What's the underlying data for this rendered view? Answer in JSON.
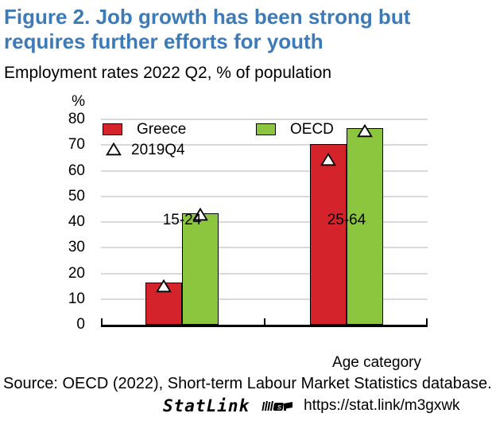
{
  "figure": {
    "title_line1": "Figure 2. Job growth has been strong but",
    "title_line2": "requires further efforts for youth",
    "subtitle": "Employment rates 2022 Q2, % of population"
  },
  "chart_data": {
    "type": "bar",
    "title": "Employment rates 2022 Q2, % of population",
    "unit_label": "%",
    "xlabel": "Age category",
    "categories": [
      "15-24",
      "25-64"
    ],
    "series": [
      {
        "name": "Greece",
        "color": "#d5232b",
        "values_2022Q2": [
          16.3,
          70.5
        ],
        "values_2019Q4": [
          15.0,
          64.3
        ]
      },
      {
        "name": "OECD",
        "color": "#8cc63e",
        "values_2022Q2": [
          43.3,
          76.5
        ],
        "values_2019Q4": [
          43.0,
          75.5
        ]
      }
    ],
    "marker_legend": "2019Q4",
    "ylim": [
      0,
      80
    ],
    "ytick_step": 10,
    "yticks": [
      0,
      10,
      20,
      30,
      40,
      50,
      60,
      70,
      80
    ],
    "grid": "horizontal",
    "legend_position": "top-left-inside",
    "gridline_color": "#d9d9d9"
  },
  "footer": {
    "source": "Source: OECD (2022), Short-term Labour Market Statistics database.",
    "statlink_label": "StatLink",
    "statlink_url": "https://stat.link/m3gxwk"
  }
}
